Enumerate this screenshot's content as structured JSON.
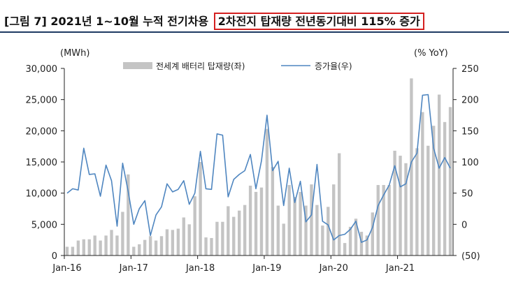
{
  "header": {
    "title_prefix": "[그림 7] 2021년 1~10월 누적 전기차용",
    "title_highlight": "2차전지 탑재량 전년동기대비 115% 증가"
  },
  "chart_data": {
    "type": "bar+line",
    "left_axis_unit": "(MWh)",
    "right_axis_unit": "(% YoY)",
    "ylim_left": [
      0,
      30000
    ],
    "ylim_right": [
      -50,
      250
    ],
    "left_ticks": [
      "30,000",
      "25,000",
      "20,000",
      "15,000",
      "10,000",
      "5,000",
      "0"
    ],
    "right_ticks": [
      "250",
      "200",
      "150",
      "100",
      "50",
      "0",
      "(50)"
    ],
    "x_tick_labels": [
      "Jan-16",
      "Jan-17",
      "Jan-18",
      "Jan-19",
      "Jan-20",
      "Jan-21"
    ],
    "months": [
      "2016-01",
      "2016-02",
      "2016-03",
      "2016-04",
      "2016-05",
      "2016-06",
      "2016-07",
      "2016-08",
      "2016-09",
      "2016-10",
      "2016-11",
      "2016-12",
      "2017-01",
      "2017-02",
      "2017-03",
      "2017-04",
      "2017-05",
      "2017-06",
      "2017-07",
      "2017-08",
      "2017-09",
      "2017-10",
      "2017-11",
      "2017-12",
      "2018-01",
      "2018-02",
      "2018-03",
      "2018-04",
      "2018-05",
      "2018-06",
      "2018-07",
      "2018-08",
      "2018-09",
      "2018-10",
      "2018-11",
      "2018-12",
      "2019-01",
      "2019-02",
      "2019-03",
      "2019-04",
      "2019-05",
      "2019-06",
      "2019-07",
      "2019-08",
      "2019-09",
      "2019-10",
      "2019-11",
      "2019-12",
      "2020-01",
      "2020-02",
      "2020-03",
      "2020-04",
      "2020-05",
      "2020-06",
      "2020-07",
      "2020-08",
      "2020-09",
      "2020-10",
      "2020-11",
      "2020-12",
      "2021-01",
      "2021-02",
      "2021-03",
      "2021-04",
      "2021-05",
      "2021-06",
      "2021-07",
      "2021-08",
      "2021-09",
      "2021-10"
    ],
    "series": [
      {
        "name": "전세계 배터리 탑재량(좌)",
        "type": "bar",
        "axis": "left",
        "color": "#c4c4c4",
        "values": [
          1400,
          1400,
          2400,
          2600,
          2600,
          3200,
          2400,
          3200,
          4100,
          3200,
          7000,
          13000,
          1400,
          1800,
          2500,
          3100,
          2400,
          3100,
          4200,
          4100,
          4300,
          6100,
          5000,
          9500,
          15000,
          2900,
          2800,
          5400,
          5400,
          7900,
          6200,
          7200,
          8100,
          11200,
          10200,
          10900,
          20300,
          14200,
          8000,
          5100,
          11300,
          9400,
          10200,
          8000,
          11400,
          8100,
          4800,
          7800,
          11400,
          16400,
          2000,
          4600,
          5900,
          3800,
          3200,
          6900,
          11300,
          11300,
          11300,
          16800,
          16000,
          14800,
          28400,
          17200,
          23000,
          17600,
          20800,
          25800,
          21400,
          23800
        ]
      },
      {
        "name": "증가율(우)",
        "type": "line",
        "axis": "right",
        "color": "#4f86c0",
        "values": [
          50,
          57,
          55,
          122,
          80,
          81,
          45,
          95,
          70,
          -3,
          98,
          53,
          0,
          25,
          38,
          -18,
          15,
          28,
          65,
          52,
          56,
          70,
          32,
          50,
          117,
          57,
          56,
          145,
          143,
          44,
          72,
          80,
          86,
          112,
          57,
          102,
          175,
          86,
          101,
          30,
          90,
          35,
          69,
          4,
          15,
          96,
          5,
          -1,
          -25,
          -18,
          -16,
          -8,
          5,
          -29,
          -25,
          -5,
          30,
          47,
          63,
          94,
          60,
          65,
          100,
          114,
          207,
          208,
          122,
          90,
          107,
          90
        ]
      }
    ]
  }
}
